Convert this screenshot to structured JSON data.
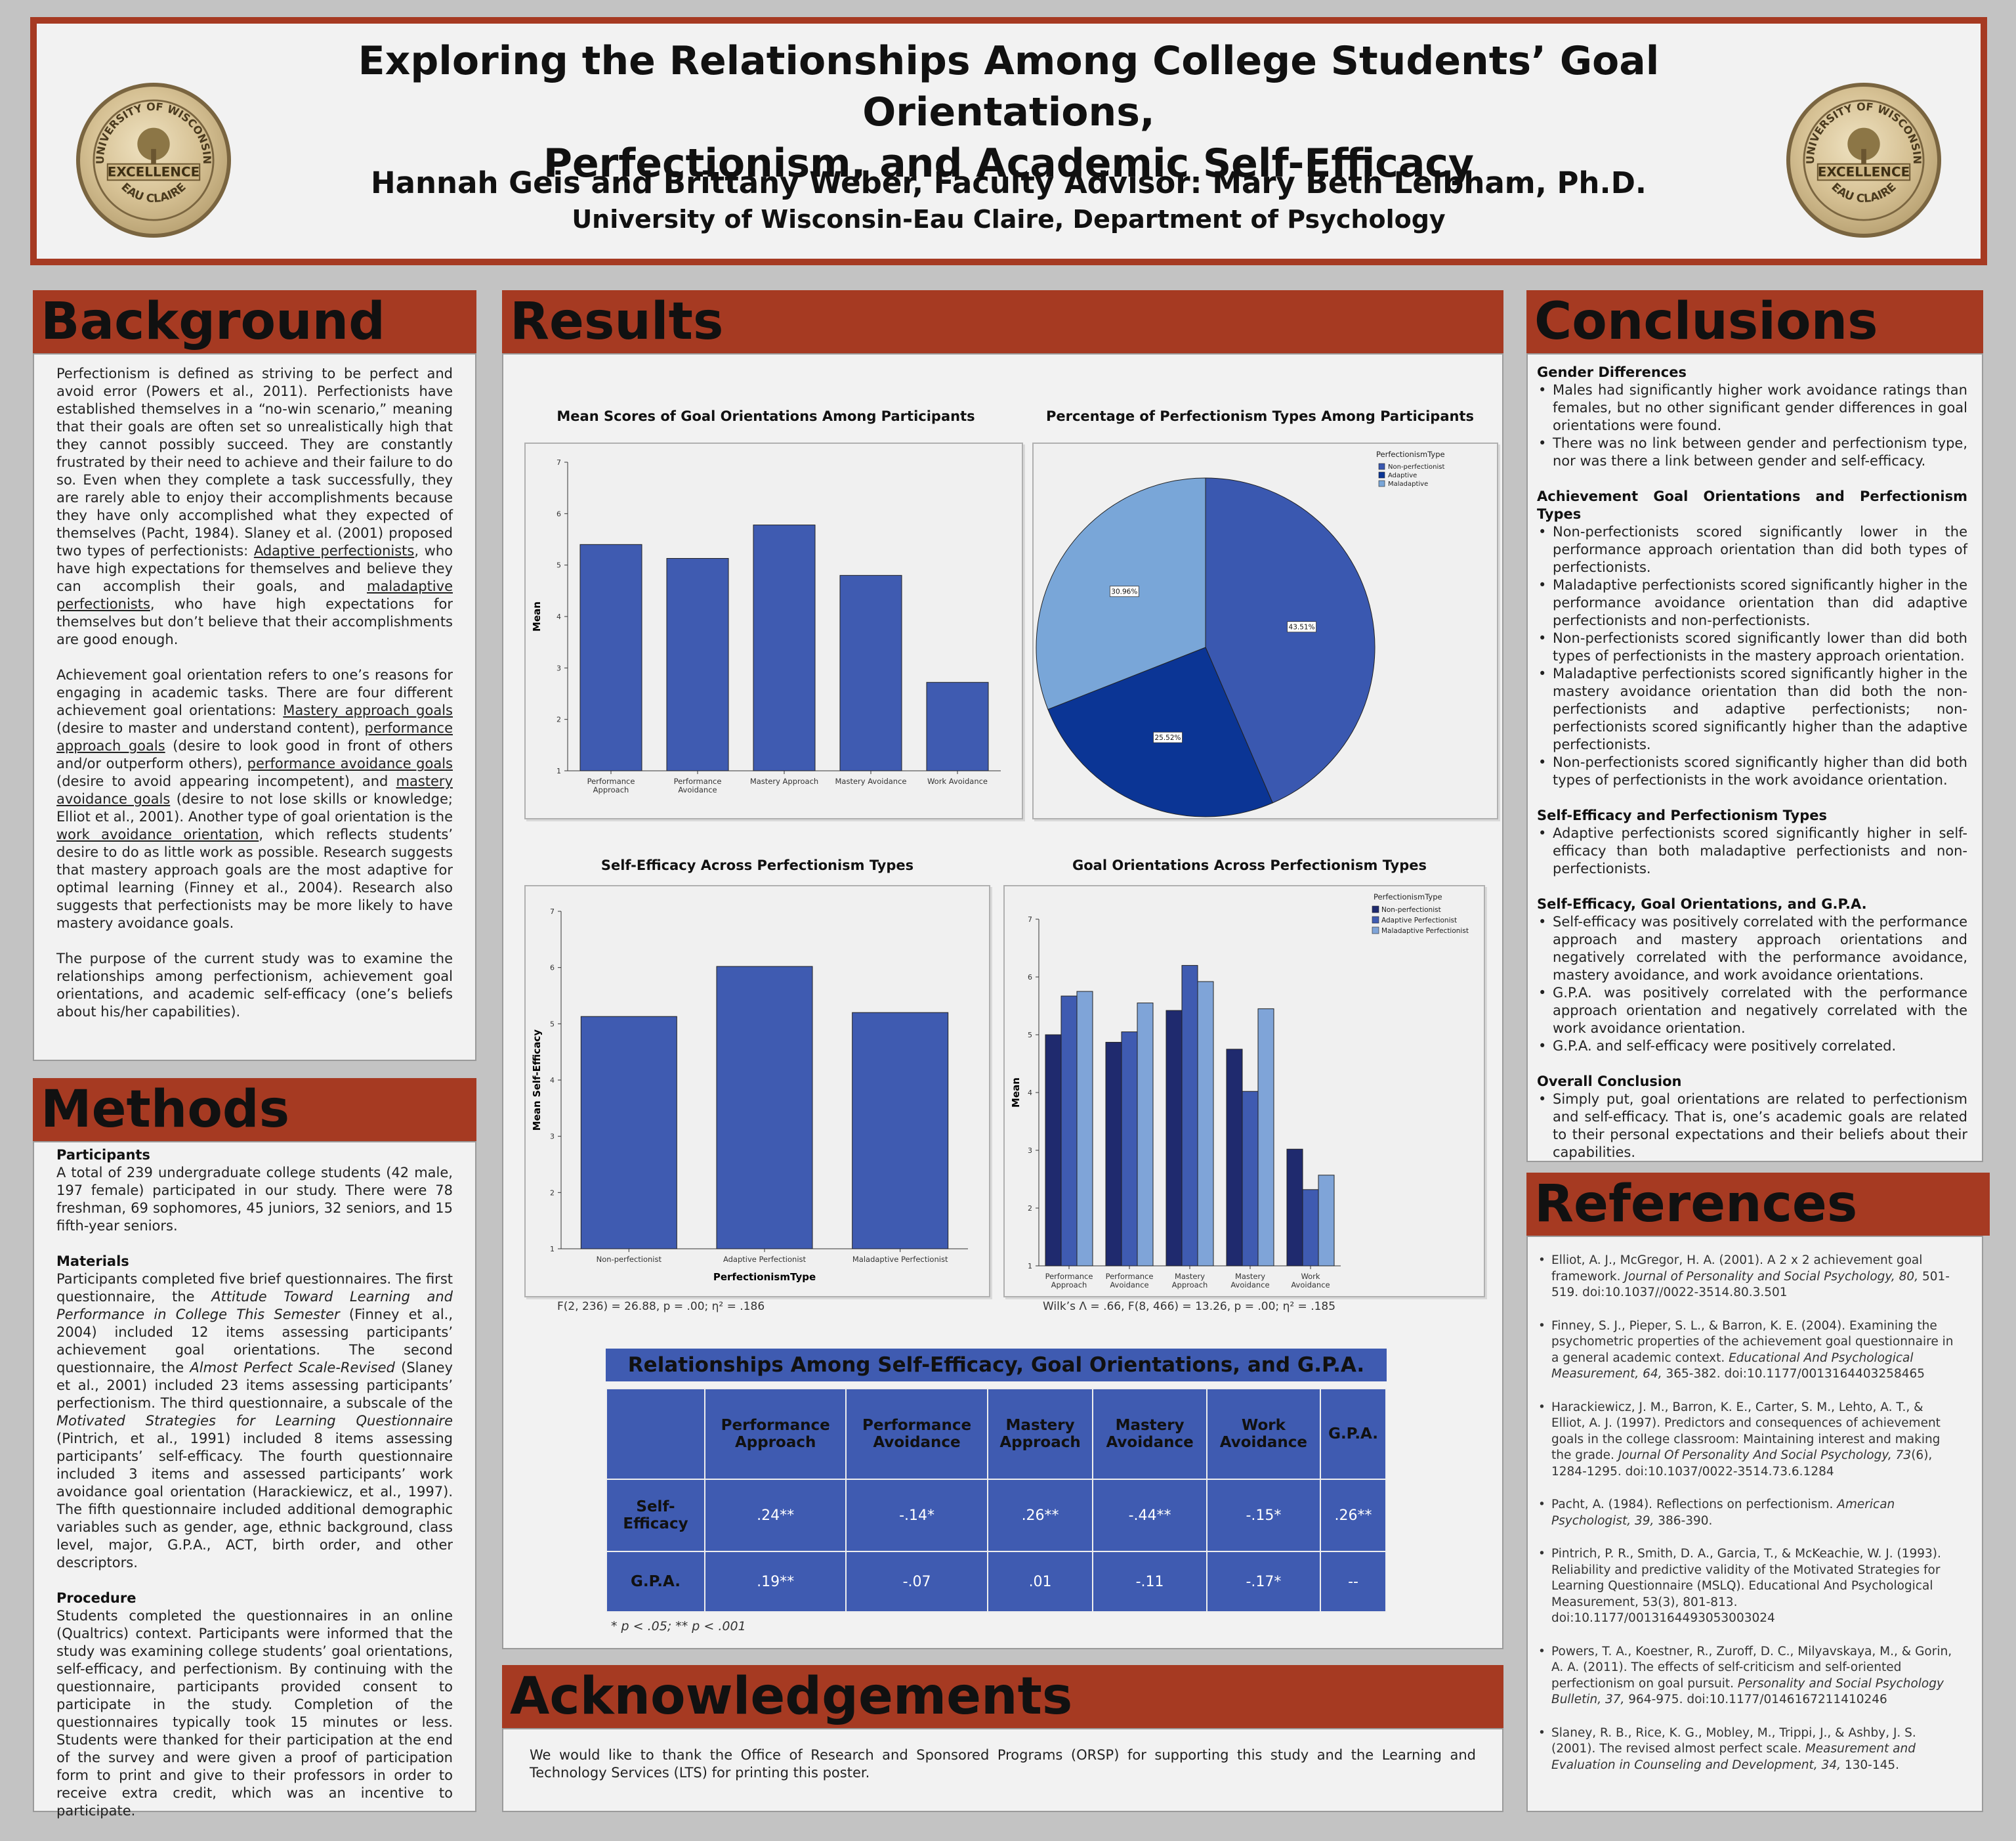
{
  "header": {
    "title_line1": "Exploring the Relationships Among College Students’ Goal Orientations,",
    "title_line2": "Perfectionism, and Academic Self-Efficacy",
    "authors": "Hannah Geis and Brittany Weber, Faculty Advisor: Mary Beth Leibham, Ph.D.",
    "affiliation": "University of Wisconsin-Eau Claire, Department of Psychology",
    "seal_text_top": "UNIVERSITY OF WISCONSIN",
    "seal_text_mid": "EXCELLENCE",
    "seal_text_bottom": "EAU CLAIRE"
  },
  "colors": {
    "accent": "#a63a22",
    "panel": "#f2f2f2",
    "bar": "#3f5bb1",
    "bg": "#c3c3c3"
  },
  "background": {
    "heading": "Background",
    "p1_a": "Perfectionism is defined as striving to be perfect and avoid error (Powers et al., 2011). Perfectionists have established themselves in a “no-win scenario,” meaning that their goals are often set so unrealistically high that they cannot possibly succeed. They are constantly frustrated by their need to achieve and their failure to do so. Even when they complete a task successfully, they are rarely able to enjoy their accomplishments because they have only accomplished what they expected of themselves (Pacht, 1984). Slaney et al. (2001) proposed two types of perfectionists: ",
    "p1_u1": "Adaptive perfectionists",
    "p1_b": ", who have high expectations for themselves and believe they can accomplish their goals, and ",
    "p1_u2": "maladaptive perfectionists",
    "p1_c": ", who have high expectations for themselves but don’t believe that their accomplishments are good enough.",
    "p2_a": "Achievement goal orientation refers to one’s reasons for engaging in academic tasks. There are four different achievement goal orientations: ",
    "p2_u1": "Mastery approach goals",
    "p2_b": " (desire to master and understand content), ",
    "p2_u2": "performance approach goals",
    "p2_c": " (desire to look good in front of others and/or outperform others), ",
    "p2_u3": "performance avoidance goals",
    "p2_d": " (desire to avoid appearing incompetent), and ",
    "p2_u4": "mastery avoidance goals",
    "p2_e": " (desire to not lose skills or knowledge; Elliot et al., 2001). Another type of goal orientation is the ",
    "p2_u5": "work avoidance orientation",
    "p2_f": ", which reflects students’ desire to do as little work as possible. Research suggests that mastery approach goals are the most adaptive  for optimal learning (Finney et al., 2004). Research also suggests that perfectionists may be more likely to have mastery avoidance goals.",
    "p3": "The purpose of the current study was to examine the relationships among perfectionism, achievement goal orientations, and academic self-efficacy (one’s beliefs about his/her capabilities)."
  },
  "methods": {
    "heading": "Methods",
    "participants_h": "Participants",
    "participants": "A total of 239 undergraduate college students (42 male, 197 female) participated in our study.  There were 78 freshman, 69 sophomores, 45 juniors, 32 seniors, and 15 fifth-year seniors.",
    "materials_h": "Materials",
    "materials_a": "Participants completed five brief questionnaires. The first questionnaire, the ",
    "materials_i1": "Attitude Toward Learning and Performance in College This Semester",
    "materials_b": " (Finney et al., 2004) included 12 items assessing participants’ achievement goal orientations. The second questionnaire, the ",
    "materials_i2": "Almost Perfect Scale-Revised",
    "materials_c": " (Slaney et al., 2001) included 23 items assessing participants’ perfectionism. The third questionnaire, a subscale of the ",
    "materials_i3": "Motivated Strategies for Learning Questionnaire",
    "materials_d": " (Pintrich, et al., 1991) included 8 items assessing participants’ self-efficacy. The fourth questionnaire included 3 items and assessed participants’ work avoidance goal orientation (Harackiewicz, et al., 1997). The fifth questionnaire included additional demographic variables such as gender, age, ethnic background, class level, major, G.P.A., ACT, birth order, and other descriptors.",
    "procedure_h": "Procedure",
    "procedure": "Students completed the questionnaires in an online (Qualtrics) context. Participants were informed that the study was examining college students’ goal orientations, self-efficacy, and perfectionism. By continuing with the questionnaire, participants provided consent to participate in the study.  Completion of the questionnaires typically took 15 minutes or less. Students were thanked for their participation at the end of the survey and were given a proof of participation form to print and give to their professors in order to receive extra credit, which was an incentive to participate."
  },
  "results": {
    "heading": "Results",
    "note1": "F(2, 236) = 26.88, p = .00; η² = .186",
    "note2": "Wilk’s Λ = .66, F(8, 466) = 13.26, p = .00; η² = .185"
  },
  "chart_data": [
    {
      "type": "bar",
      "title": "Mean Scores of Goal Orientations Among Participants",
      "xlabel": "",
      "ylabel": "Mean",
      "ylim": [
        1,
        7
      ],
      "yticks": [
        "1",
        "2",
        "3",
        "4",
        "5",
        "6",
        "7"
      ],
      "categories": [
        "Performance Approach",
        "Performance Avoidance",
        "Mastery Approach",
        "Mastery Avoidance",
        "Work Avoidance"
      ],
      "category_lines": [
        [
          "Performance",
          "Approach"
        ],
        [
          "Performance",
          "Avoidance"
        ],
        [
          "Mastery Approach"
        ],
        [
          "Mastery Avoidance"
        ],
        [
          "Work Avoidance"
        ]
      ],
      "values": [
        5.4,
        5.13,
        5.78,
        4.8,
        2.72
      ],
      "color": "#3f5bb1"
    },
    {
      "type": "pie",
      "title": "Percentage of Perfectionism Types Among Participants",
      "legend_title": "PerfectionismType",
      "labels": [
        "Non-perfectionist",
        "Adaptive",
        "Maladaptive"
      ],
      "values": [
        43.51,
        25.52,
        30.96
      ],
      "value_labels": [
        "43.51%",
        "25.52%",
        "30.96%"
      ],
      "colors": [
        "#3a58b0",
        "#0b3595",
        "#79a6d8"
      ],
      "legend_position": "top-right"
    },
    {
      "type": "bar",
      "title": "Self-Efficacy  Across Perfectionism Types",
      "xlabel": "PerfectionismType",
      "ylabel": "Mean Self-Efficacy",
      "ylim": [
        1,
        7
      ],
      "yticks": [
        "1",
        "2",
        "3",
        "4",
        "5",
        "6",
        "7"
      ],
      "categories": [
        "Non-perfectionist",
        "Adaptive Perfectionist",
        "Maladaptive Perfectionist"
      ],
      "values": [
        5.13,
        6.02,
        5.2
      ],
      "color": "#3f5bb1"
    },
    {
      "type": "bar",
      "title": "Goal Orientations Across Perfectionism Types",
      "xlabel": "",
      "ylabel": "Mean",
      "ylim": [
        1,
        7
      ],
      "yticks": [
        "1",
        "2",
        "3",
        "4",
        "5",
        "6",
        "7"
      ],
      "legend_title": "PerfectionismType",
      "legend_position": "top-right",
      "categories": [
        "Performance Approach",
        "Performance Avoidance",
        "Mastery Approach",
        "Mastery Avoidance",
        "Work Avoidance"
      ],
      "category_lines": [
        [
          "Performance",
          "Approach"
        ],
        [
          "Performance",
          "Avoidance"
        ],
        [
          "Mastery",
          "Approach"
        ],
        [
          "Mastery",
          "Avoidance"
        ],
        [
          "Work",
          "Avoidance"
        ]
      ],
      "series": [
        {
          "name": "Non-perfectionist",
          "values": [
            5.0,
            4.87,
            5.42,
            4.75,
            3.02
          ],
          "color": "#1f2a6e"
        },
        {
          "name": "Adaptive Perfectionist",
          "values": [
            5.67,
            5.05,
            6.2,
            4.02,
            2.32
          ],
          "color": "#3f5bb1"
        },
        {
          "name": "Maladaptive Perfectionist",
          "values": [
            5.75,
            5.55,
            5.92,
            5.45,
            2.57
          ],
          "color": "#7fa4d8"
        }
      ]
    },
    {
      "type": "table",
      "title": "Relationships Among Self-Efficacy, Goal Orientations, and G.P.A.",
      "columns": [
        "Performance Approach",
        "Performance Avoidance",
        "Mastery Approach",
        "Mastery Avoidance",
        "Work Avoidance",
        "G.P.A."
      ],
      "column_lines": [
        [
          "Performance",
          "Approach"
        ],
        [
          "Performance",
          "Avoidance"
        ],
        [
          "Mastery",
          "Approach"
        ],
        [
          "Mastery",
          "Avoidance"
        ],
        [
          "Work",
          "Avoidance"
        ],
        [
          "G.P.A."
        ]
      ],
      "rows": [
        {
          "label_lines": [
            "Self-",
            "Efficacy"
          ],
          "label": "Self-Efficacy",
          "values": [
            ".24**",
            "-.14*",
            ".26**",
            "-.44**",
            "-.15*",
            ".26**"
          ]
        },
        {
          "label_lines": [
            "G.P.A."
          ],
          "label": "G.P.A.",
          "values": [
            ".19**",
            "-.07",
            ".01",
            "-.11",
            "-.17*",
            "--"
          ]
        }
      ],
      "footnote": "* p < .05; ** p < .001"
    }
  ],
  "acknowledgements": {
    "heading": "Acknowledgements",
    "text": "We would like to thank the Office of Research and Sponsored Programs (ORSP) for supporting this study and the Learning and Technology Services (LTS) for printing this poster."
  },
  "conclusions": {
    "heading": "Conclusions",
    "sections": [
      {
        "title": "Gender Differences",
        "items": [
          "Males had significantly higher work avoidance ratings than females, but no other significant gender differences in goal orientations were found.",
          "There was no link between gender and perfectionism type, nor was there a link between gender and self-efficacy."
        ]
      },
      {
        "title": "Achievement Goal Orientations and Perfectionism Types",
        "items": [
          "Non-perfectionists scored significantly lower in the performance approach orientation than did both types of perfectionists.",
          "Maladaptive perfectionists scored significantly higher in the performance avoidance orientation than did adaptive perfectionists and non-perfectionists.",
          "Non-perfectionists scored significantly lower than did both types of perfectionists in the mastery approach orientation.",
          "Maladaptive perfectionists scored significantly higher in the mastery avoidance orientation than did both the non-perfectionists and adaptive perfectionists; non-perfectionists scored significantly higher than the adaptive perfectionists.",
          "Non-perfectionists scored significantly higher than did both types of perfectionists in the work avoidance orientation."
        ]
      },
      {
        "title": "Self-Efficacy  and Perfectionism Types",
        "items": [
          "Adaptive perfectionists scored significantly higher in self-efficacy than both maladaptive perfectionists and non-perfectionists."
        ]
      },
      {
        "title": "Self-Efficacy, Goal Orientations, and G.P.A.",
        "items": [
          "Self-efficacy was positively correlated with the performance approach and mastery approach orientations and negatively correlated with the performance avoidance, mastery avoidance, and work avoidance orientations.",
          "G.P.A. was positively correlated with the performance approach orientation and negatively correlated with the work avoidance orientation.",
          "G.P.A. and self-efficacy were positively correlated."
        ]
      },
      {
        "title": "Overall Conclusion",
        "items": [
          "Simply put, goal orientations are related to perfectionism and self-efficacy.  That is, one’s academic goals are related to their personal expectations and their beliefs about their capabilities."
        ]
      }
    ]
  },
  "references": {
    "heading": "References",
    "items": [
      {
        "a": "Elliot, A. J., McGregor, H. A. (2001). A 2 x 2 achievement goal framework. ",
        "i": "Journal of Personality and Social Psychology, 80,",
        "b": " 501-519. doi:10.1037//0022-3514.80.3.501"
      },
      {
        "a": "Finney, S. J., Pieper, S. L., & Barron, K. E. (2004). Examining the psychometric properties of the achievement goal questionnaire in a general academic context. ",
        "i": "Educational And  Psychological Measurement, 64,",
        "b": " 365-382. doi:10.1177/0013164403258465"
      },
      {
        "a": "Harackiewicz, J. M., Barron, K. E., Carter, S. M., Lehto, A. T., & Elliot, A. J. (1997). Predictors and consequences of achievement goals in the college classroom: Maintaining interest and making the grade. ",
        "i": "Journal Of Personality And Social Psychology, 73",
        "b": "(6), 1284-1295. doi:10.1037/0022-3514.73.6.1284"
      },
      {
        "a": "Pacht, A. (1984). Reflections on perfectionism. ",
        "i": "American Psychologist, 39,",
        "b": " 386-390."
      },
      {
        "a": "Pintrich, P. R., Smith, D. A., Garcia, T., & McKeachie, W. J. (1993). Reliability and predictive validity of the Motivated Strategies for Learning Questionnaire (MSLQ). Educational And Psychological Measurement, 53(3), 801-813. doi:10.1177/0013164493053003024",
        "i": "",
        "b": ""
      },
      {
        "a": "Powers, T. A., Koestner, R., Zuroff, D. C., Milyavskaya, M., & Gorin, A. A. (2011). The effects of self-criticism and self-oriented perfectionism on goal pursuit. ",
        "i": "Personality and Social Psychology Bulletin, 37,",
        "b": " 964-975. doi:10.1177/0146167211410246"
      },
      {
        "a": "Slaney, R. B., Rice, K. G., Mobley, M., Trippi, J., & Ashby, J. S. (2001). The revised almost perfect scale. ",
        "i": "Measurement and Evaluation in Counseling and Development, 34,",
        "b": " 130-145."
      }
    ]
  }
}
